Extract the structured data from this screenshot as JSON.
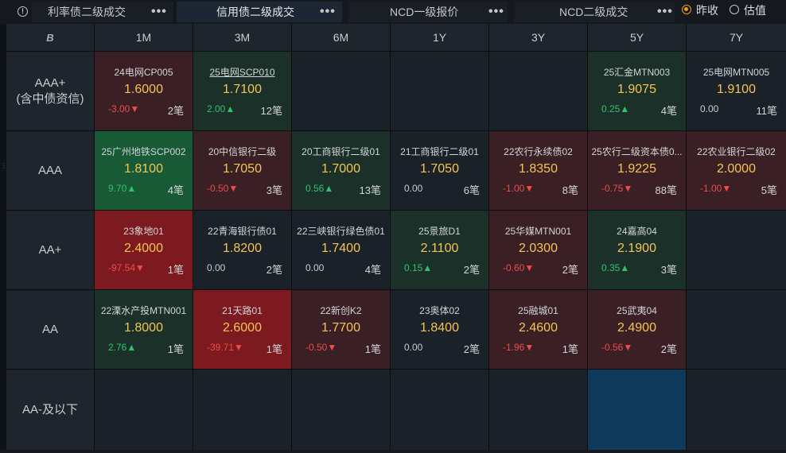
{
  "tabs": [
    {
      "label": "利率债二级成交",
      "active": false
    },
    {
      "label": "信用债二级成交",
      "active": true
    },
    {
      "label": "NCD一级报价",
      "active": false
    },
    {
      "label": "NCD二级成交",
      "active": false
    }
  ],
  "more_glyph": "•••",
  "radio": {
    "option1": "昨收",
    "option2": "估值",
    "selected": "昨收"
  },
  "corner_logo": "B",
  "tenors": [
    "1M",
    "3M",
    "6M",
    "1Y",
    "3Y",
    "5Y",
    "7Y"
  ],
  "ratings": [
    "AAA+\n(含中债资信)",
    "AAA",
    "AA+",
    "AA",
    "AA-及以下"
  ],
  "colors": {
    "deep_red": "#7c1a20",
    "red": "#3a2025",
    "deep_green": "#175a35",
    "green": "#1a3029",
    "neutral": "#1b2128",
    "blue": "#0f3a5c",
    "yield": "#f6c453",
    "down": "#ee4b4b",
    "up": "#30c36a"
  },
  "grid": [
    [
      {
        "name": "24电网CP005",
        "yield": "1.6000",
        "chg": "-3.00▼",
        "dir": "neg",
        "cnt": "2笔",
        "bg": "red"
      },
      {
        "name": "25电网SCP010",
        "yield": "1.7100",
        "chg": "2.00▲",
        "dir": "pos",
        "cnt": "12笔",
        "bg": "green",
        "underline": true
      },
      null,
      null,
      null,
      {
        "name": "25汇金MTN003",
        "yield": "1.9075",
        "chg": "0.25▲",
        "dir": "pos",
        "cnt": "4笔",
        "bg": "green"
      },
      {
        "name": "25电网MTN005",
        "yield": "1.9100",
        "chg": "0.00",
        "dir": "zero",
        "cnt": "11笔",
        "bg": "neutral"
      }
    ],
    [
      {
        "name": "25广州地铁SCP002",
        "yield": "1.8100",
        "chg": "9.70▲",
        "dir": "pos",
        "cnt": "4笔",
        "bg": "deep_green"
      },
      {
        "name": "20中信银行二级",
        "yield": "1.7050",
        "chg": "-0.50▼",
        "dir": "neg",
        "cnt": "3笔",
        "bg": "red"
      },
      {
        "name": "20工商银行二级01",
        "yield": "1.7000",
        "chg": "0.56▲",
        "dir": "pos",
        "cnt": "13笔",
        "bg": "green"
      },
      {
        "name": "21工商银行二级01",
        "yield": "1.7050",
        "chg": "0.00",
        "dir": "zero",
        "cnt": "6笔",
        "bg": "neutral"
      },
      {
        "name": "22农行永续债02",
        "yield": "1.8350",
        "chg": "-1.00▼",
        "dir": "neg",
        "cnt": "8笔",
        "bg": "red"
      },
      {
        "name": "25农行二级资本债0...",
        "yield": "1.9225",
        "chg": "-0.75▼",
        "dir": "neg",
        "cnt": "88笔",
        "bg": "red"
      },
      {
        "name": "22农业银行二级02",
        "yield": "2.0000",
        "chg": "-1.00▼",
        "dir": "neg",
        "cnt": "5笔",
        "bg": "red"
      }
    ],
    [
      {
        "name": "23象地01",
        "yield": "2.4000",
        "chg": "-97.54▼",
        "dir": "neg",
        "cnt": "1笔",
        "bg": "deep_red"
      },
      {
        "name": "22青海银行债01",
        "yield": "1.8200",
        "chg": "0.00",
        "dir": "zero",
        "cnt": "2笔",
        "bg": "neutral"
      },
      {
        "name": "22三峡银行绿色债01",
        "yield": "1.7400",
        "chg": "0.00",
        "dir": "zero",
        "cnt": "4笔",
        "bg": "neutral"
      },
      {
        "name": "25景旅D1",
        "yield": "2.1100",
        "chg": "0.15▲",
        "dir": "pos",
        "cnt": "2笔",
        "bg": "green"
      },
      {
        "name": "25华媒MTN001",
        "yield": "2.0300",
        "chg": "-0.60▼",
        "dir": "neg",
        "cnt": "2笔",
        "bg": "red"
      },
      {
        "name": "24嘉高04",
        "yield": "2.1900",
        "chg": "0.35▲",
        "dir": "pos",
        "cnt": "3笔",
        "bg": "green"
      },
      null
    ],
    [
      {
        "name": "22溧水产投MTN001",
        "yield": "1.8000",
        "chg": "2.76▲",
        "dir": "pos",
        "cnt": "1笔",
        "bg": "green"
      },
      {
        "name": "21天路01",
        "yield": "2.6000",
        "chg": "-39.71▼",
        "dir": "neg",
        "cnt": "1笔",
        "bg": "deep_red"
      },
      {
        "name": "22新创K2",
        "yield": "1.7700",
        "chg": "-0.50▼",
        "dir": "neg",
        "cnt": "1笔",
        "bg": "red"
      },
      {
        "name": "23奥体02",
        "yield": "1.8400",
        "chg": "0.00",
        "dir": "zero",
        "cnt": "2笔",
        "bg": "neutral"
      },
      {
        "name": "25融城01",
        "yield": "2.4600",
        "chg": "-1.96▼",
        "dir": "neg",
        "cnt": "1笔",
        "bg": "red"
      },
      {
        "name": "25武夷04",
        "yield": "2.4900",
        "chg": "-0.56▼",
        "dir": "neg",
        "cnt": "2笔",
        "bg": "red"
      },
      null
    ],
    [
      null,
      null,
      null,
      null,
      null,
      {
        "bg": "blue",
        "highlight": true
      },
      null
    ]
  ]
}
